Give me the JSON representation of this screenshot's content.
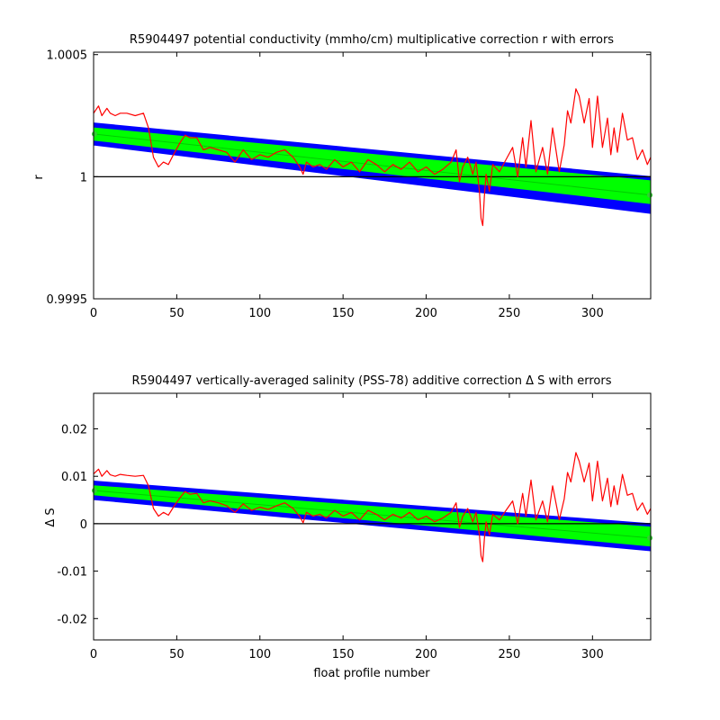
{
  "chart_data": [
    {
      "type": "line",
      "title": "R5904497 potential conductivity (mmho/cm) multiplicative correction r with errors",
      "xlabel": "",
      "ylabel": "r",
      "xlim": [
        0,
        335
      ],
      "ylim": [
        0.9995,
        1.00051
      ],
      "xticks": [
        0,
        50,
        100,
        150,
        200,
        250,
        300
      ],
      "xtick_labels": [
        "0",
        "50",
        "100",
        "150",
        "200",
        "250",
        "300"
      ],
      "yticks": [
        0.9995,
        1,
        1.0005
      ],
      "ytick_labels": [
        "0.9995",
        "1",
        "1.0005"
      ],
      "reference_line": 1,
      "grid": false,
      "colors": {
        "outer_error": "#0000ff",
        "inner_error": "#00ff00",
        "profile": "#ff0000",
        "fit": "#00cc00",
        "reference": "#000000"
      },
      "band_outer": {
        "x": [
          0,
          335
        ],
        "upper": [
          1.000222,
          1.000002
        ],
        "lower": [
          1.000128,
          0.999848
        ]
      },
      "band_inner": {
        "x": [
          0,
          335
        ],
        "upper": [
          1.000202,
          0.999985
        ],
        "lower": [
          1.000148,
          0.999888
        ]
      },
      "fit_line": {
        "x": [
          0,
          335
        ],
        "y": [
          1.000175,
          0.999925
        ]
      },
      "series": [
        {
          "x": [
            0,
            3,
            5,
            8,
            10,
            13,
            16,
            20,
            25,
            30,
            33,
            36,
            39,
            42,
            45,
            48,
            52,
            55,
            58,
            62,
            66,
            70,
            75,
            80,
            85,
            90,
            95,
            100,
            105,
            110,
            115,
            120,
            124,
            126,
            128,
            132,
            136,
            140,
            145,
            150,
            155,
            160,
            165,
            170,
            175,
            180,
            185,
            190,
            195,
            200,
            205,
            210,
            215,
            218,
            220,
            222,
            225,
            228,
            230,
            232,
            233,
            234,
            235,
            236,
            238,
            240,
            244,
            248,
            252,
            255,
            258,
            260,
            263,
            266,
            270,
            273,
            276,
            280,
            283,
            285,
            287,
            290,
            292,
            295,
            298,
            300,
            303,
            306,
            309,
            311,
            313,
            315,
            318,
            321,
            324,
            327,
            330,
            333,
            335
          ],
          "y": [
            1.00026,
            1.00029,
            1.00025,
            1.00028,
            1.00026,
            1.00025,
            1.00026,
            1.00026,
            1.00025,
            1.00026,
            1.0002,
            1.00008,
            1.00004,
            1.00006,
            1.00005,
            1.00009,
            1.00014,
            1.00017,
            1.00016,
            1.00016,
            1.00011,
            1.00012,
            1.00011,
            1.0001,
            1.00006,
            1.00011,
            1.00007,
            1.00009,
            1.00008,
            1.0001,
            1.00011,
            1.00008,
            1.00004,
            1.00001,
            1.00006,
            1.00004,
            1.00005,
            1.00003,
            1.00007,
            1.00004,
            1.00006,
            1.00002,
            1.00007,
            1.00005,
            1.00002,
            1.00005,
            1.00003,
            1.00006,
            1.00002,
            1.00004,
            1.00001,
            1.00003,
            1.00006,
            1.00011,
            0.99998,
            1.00004,
            1.00008,
            1.00001,
            1.00006,
            0.99994,
            0.99983,
            0.9998,
            0.99992,
            1.00001,
            0.99994,
            1.00005,
            1.00002,
            1.00007,
            1.00012,
            1.0,
            1.00016,
            1.00004,
            1.00023,
            1.00002,
            1.00012,
            1.00001,
            1.0002,
            1.00002,
            1.00013,
            1.00027,
            1.00022,
            1.00036,
            1.00033,
            1.00022,
            1.00032,
            1.00012,
            1.00033,
            1.00012,
            1.00024,
            1.00009,
            1.0002,
            1.0001,
            1.00026,
            1.00015,
            1.00016,
            1.00007,
            1.00011,
            1.00005,
            1.00008
          ]
        }
      ]
    },
    {
      "type": "line",
      "title": "R5904497 vertically-averaged salinity (PSS-78) additive correction Δ S with errors",
      "xlabel": "float profile number",
      "ylabel": "Δ S",
      "xlim": [
        0,
        335
      ],
      "ylim": [
        -0.0245,
        0.0275
      ],
      "xticks": [
        0,
        50,
        100,
        150,
        200,
        250,
        300
      ],
      "xtick_labels": [
        "0",
        "50",
        "100",
        "150",
        "200",
        "250",
        "300"
      ],
      "yticks": [
        -0.02,
        -0.01,
        0,
        0.01,
        0.02
      ],
      "ytick_labels": [
        "-0.02",
        "-0.01",
        "0",
        "0.01",
        "0.02"
      ],
      "reference_line": 0,
      "grid": false,
      "colors": {
        "outer_error": "#0000ff",
        "inner_error": "#00ff00",
        "profile": "#ff0000",
        "fit": "#00cc00",
        "reference": "#000000"
      },
      "band_outer": {
        "x": [
          0,
          335
        ],
        "upper": [
          0.0091,
          0.0001
        ],
        "lower": [
          0.005,
          -0.0058
        ]
      },
      "band_inner": {
        "x": [
          0,
          335
        ],
        "upper": [
          0.0081,
          -0.0006
        ],
        "lower": [
          0.006,
          -0.0048
        ]
      },
      "fit_line": {
        "x": [
          0,
          335
        ],
        "y": [
          0.007,
          -0.003
        ]
      },
      "series": [
        {
          "x": [
            0,
            3,
            5,
            8,
            10,
            13,
            16,
            20,
            25,
            30,
            33,
            36,
            39,
            42,
            45,
            48,
            52,
            55,
            58,
            62,
            66,
            70,
            75,
            80,
            85,
            90,
            95,
            100,
            105,
            110,
            115,
            120,
            124,
            126,
            128,
            132,
            136,
            140,
            145,
            150,
            155,
            160,
            165,
            170,
            175,
            180,
            185,
            190,
            195,
            200,
            205,
            210,
            215,
            218,
            220,
            222,
            225,
            228,
            230,
            232,
            233,
            234,
            235,
            236,
            238,
            240,
            244,
            248,
            252,
            255,
            258,
            260,
            263,
            266,
            270,
            273,
            276,
            280,
            283,
            285,
            287,
            290,
            292,
            295,
            298,
            300,
            303,
            306,
            309,
            311,
            313,
            315,
            318,
            321,
            324,
            327,
            330,
            333,
            335
          ],
          "y": [
            0.0105,
            0.0115,
            0.01,
            0.0112,
            0.0103,
            0.01,
            0.0104,
            0.0102,
            0.01,
            0.0102,
            0.008,
            0.0032,
            0.0016,
            0.0024,
            0.0018,
            0.0035,
            0.0055,
            0.0068,
            0.0062,
            0.0064,
            0.0044,
            0.0048,
            0.0044,
            0.0038,
            0.0024,
            0.0042,
            0.0028,
            0.0035,
            0.003,
            0.0038,
            0.0044,
            0.0032,
            0.0015,
            0.0002,
            0.0024,
            0.0016,
            0.002,
            0.0012,
            0.0028,
            0.0016,
            0.0024,
            0.0008,
            0.0028,
            0.002,
            0.0008,
            0.002,
            0.0012,
            0.0024,
            0.0008,
            0.0016,
            0.0004,
            0.0012,
            0.0024,
            0.0044,
            -0.0008,
            0.0016,
            0.0032,
            0.0004,
            0.0024,
            -0.0024,
            -0.0068,
            -0.008,
            -0.0032,
            0.0004,
            -0.0024,
            0.002,
            0.0008,
            0.0028,
            0.0048,
            0.0,
            0.0064,
            0.0016,
            0.0092,
            0.0008,
            0.0048,
            0.0004,
            0.008,
            0.0008,
            0.0052,
            0.0108,
            0.0088,
            0.015,
            0.0132,
            0.0088,
            0.0128,
            0.0048,
            0.0132,
            0.0048,
            0.0096,
            0.0036,
            0.008,
            0.004,
            0.0104,
            0.006,
            0.0064,
            0.0028,
            0.0044,
            0.002,
            0.0032
          ]
        }
      ]
    }
  ]
}
